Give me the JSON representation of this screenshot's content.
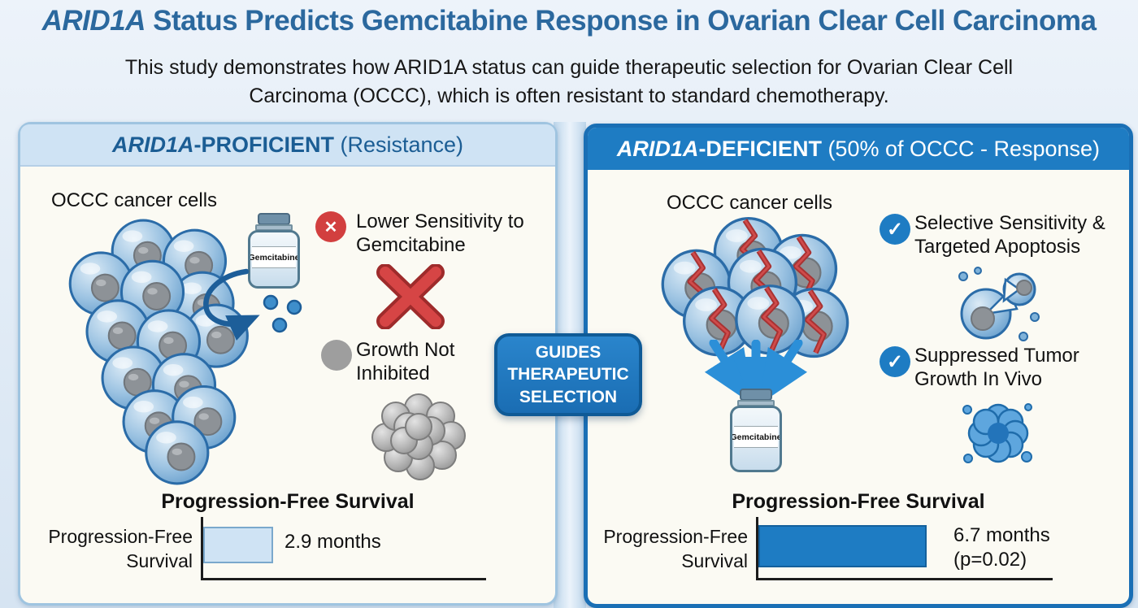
{
  "title": {
    "gene": "ARID1A",
    "rest": " Status Predicts Gemcitabine Response in Ovarian Clear Cell Carcinoma"
  },
  "subtitle": "This study demonstrates how ARID1A status can guide therapeutic selection for Ovarian Clear Cell Carcinoma (OCCC), which is often resistant to standard chemotherapy.",
  "center_box": {
    "label": "GUIDES THERAPEUTIC SELECTION"
  },
  "left_panel": {
    "header_gene": "ARID1A",
    "header_bold": "-PROFICIENT",
    "header_normal": " (Resistance)",
    "cells_label": "OCCC cancer cells",
    "vial_label": "Gemcitabine",
    "point1": "Lower Sensitivity to Gemcitabine",
    "point2": "Growth Not Inhibited",
    "chart": {
      "title": "Progression-Free Survival",
      "ylabel": "Progression-Free Survival",
      "value_label": "2.9 months",
      "months": 2.9
    }
  },
  "right_panel": {
    "header_gene": "ARID1A",
    "header_bold": "-DEFICIENT",
    "header_normal": " (50% of OCCC - Response)",
    "cells_label": "OCCC cancer cells",
    "vial_label": "Gemcitabine",
    "point1": "Selective Sensitivity & Targeted Apoptosis",
    "point2": "Suppressed Tumor Growth In Vivo",
    "chart": {
      "title": "Progression-Free Survival",
      "ylabel": "Progression-Free Survival",
      "value_label": "6.7 months",
      "value_sub": "(p=0.02)",
      "months": 6.7
    }
  },
  "chart_data": [
    {
      "type": "bar",
      "orientation": "horizontal",
      "panel": "ARID1A-PROFICIENT (Resistance)",
      "title": "Progression-Free Survival",
      "categories": [
        "Progression-Free Survival"
      ],
      "values": [
        2.9
      ],
      "unit": "months",
      "xlim": [
        0,
        11.7
      ]
    },
    {
      "type": "bar",
      "orientation": "horizontal",
      "panel": "ARID1A-DEFICIENT (50% of OCCC - Response)",
      "title": "Progression-Free Survival",
      "categories": [
        "Progression-Free Survival"
      ],
      "values": [
        6.7
      ],
      "unit": "months",
      "annotation": "p=0.02",
      "xlim": [
        0,
        11.7
      ]
    }
  ],
  "colors": {
    "title_blue": "#2b689e",
    "accent_blue": "#1e7cc3",
    "light_bar": "#cfe3f4",
    "red": "#d24444",
    "gray": "#9e9e9e",
    "panel_bg": "#fbfaf3"
  }
}
